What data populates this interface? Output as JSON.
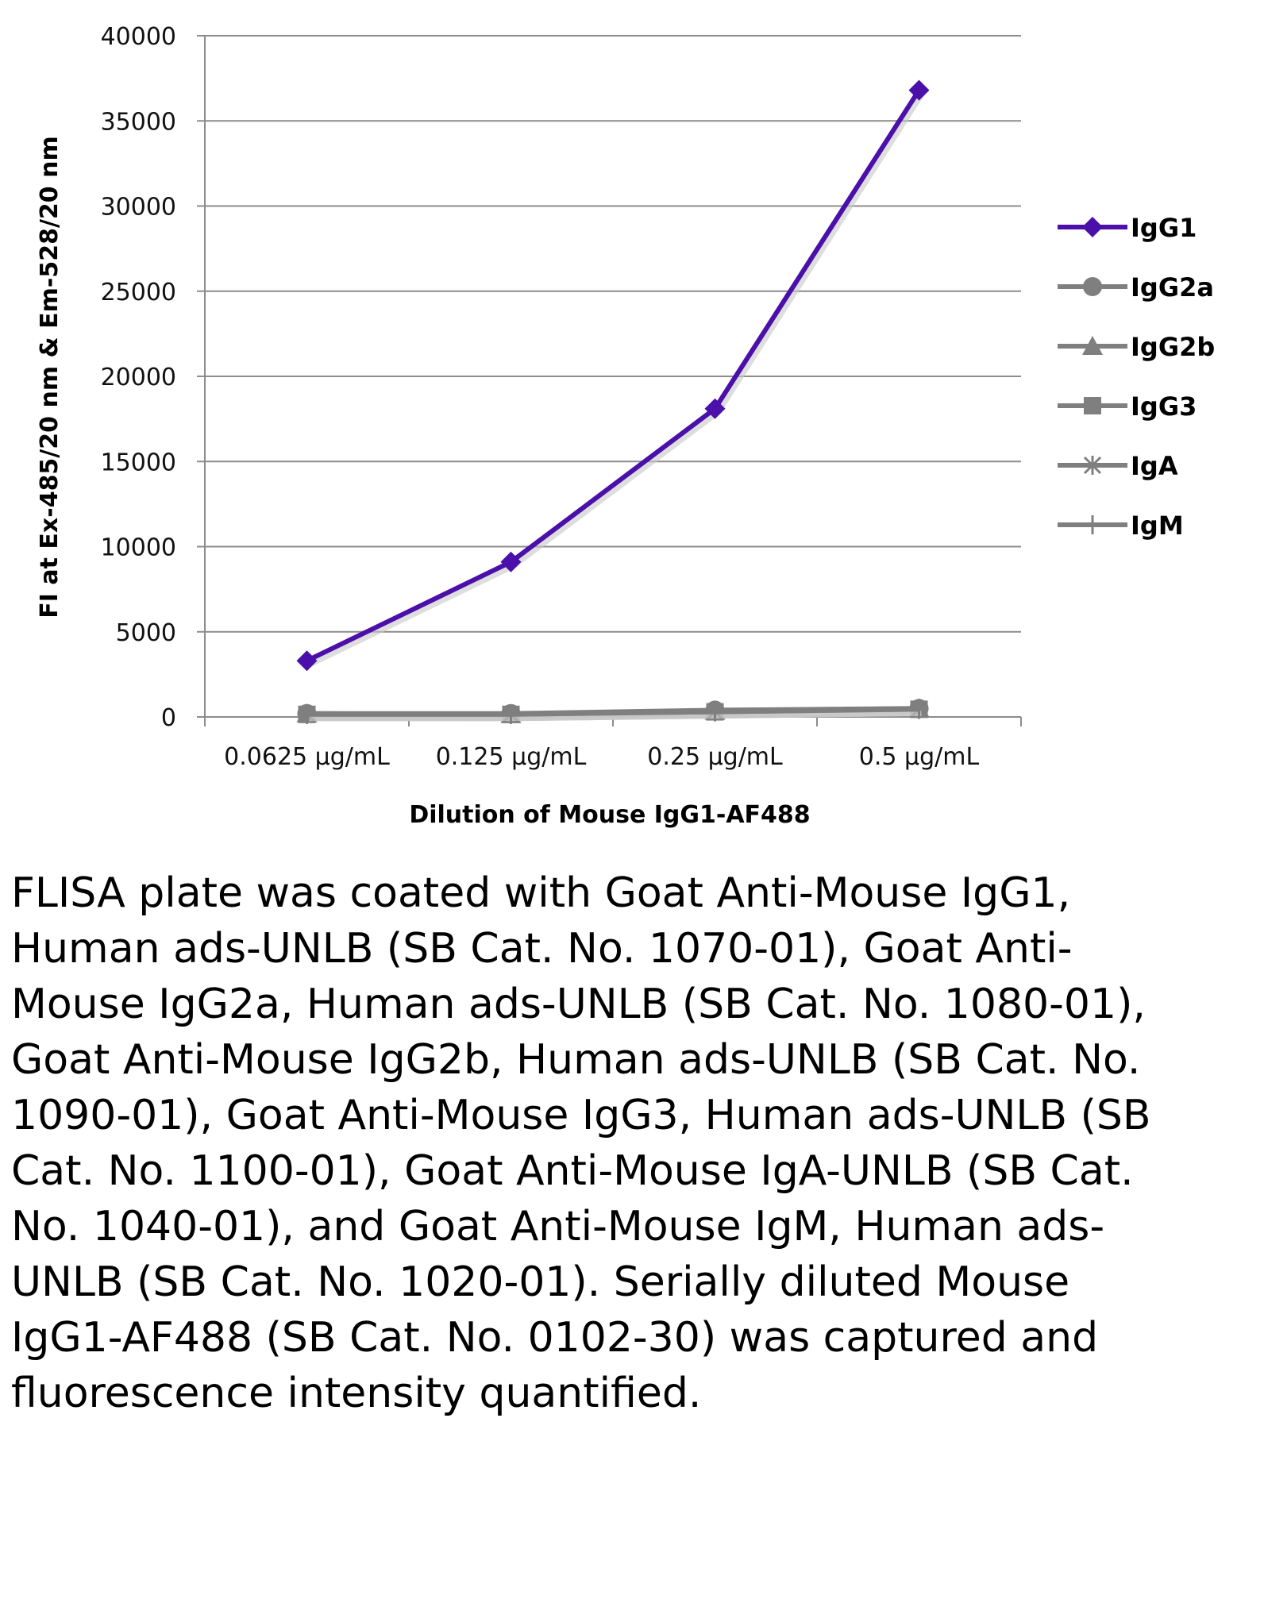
{
  "chart_data": {
    "type": "line",
    "categories": [
      "0.0625 µg/mL",
      "0.125 µg/mL",
      "0.25 µg/mL",
      "0.5 µg/mL"
    ],
    "xlabel": "Dilution of Mouse IgG1-AF488",
    "ylabel": "FI at Ex-485/20 nm & Em-528/20 nm",
    "ylim": [
      0,
      40000
    ],
    "yticks": [
      0,
      5000,
      10000,
      15000,
      20000,
      25000,
      30000,
      35000,
      40000
    ],
    "grid": "horizontal",
    "legend_position": "right",
    "series": [
      {
        "name": "IgG1",
        "values": [
          3300,
          9100,
          18100,
          36800
        ],
        "color": "#4B0FAA",
        "marker": "diamond"
      },
      {
        "name": "IgG2a",
        "values": [
          200,
          200,
          400,
          500
        ],
        "color": "#7F7F7F",
        "marker": "circle"
      },
      {
        "name": "IgG2b",
        "values": [
          200,
          150,
          350,
          500
        ],
        "color": "#7F7F7F",
        "marker": "triangle"
      },
      {
        "name": "IgG3",
        "values": [
          150,
          150,
          300,
          450
        ],
        "color": "#7F7F7F",
        "marker": "square"
      },
      {
        "name": "IgA",
        "values": [
          150,
          150,
          300,
          450
        ],
        "color": "#7F7F7F",
        "marker": "star"
      },
      {
        "name": "IgM",
        "values": [
          150,
          150,
          300,
          450
        ],
        "color": "#7F7F7F",
        "marker": "plus"
      }
    ]
  },
  "caption": "FLISA plate was coated with Goat Anti-Mouse IgG1, Human ads-UNLB (SB Cat. No. 1070-01), Goat Anti-Mouse IgG2a, Human ads-UNLB (SB Cat. No. 1080-01), Goat Anti-Mouse IgG2b, Human ads-UNLB (SB Cat. No. 1090-01), Goat Anti-Mouse IgG3, Human ads-UNLB (SB Cat. No. 1100-01), Goat Anti-Mouse IgA-UNLB (SB Cat. No. 1040-01), and Goat Anti-Mouse IgM, Human ads-UNLB (SB Cat. No. 1020-01).  Serially diluted Mouse IgG1-AF488 (SB Cat. No. 0102-30) was captured and fluorescence intensity quantified."
}
